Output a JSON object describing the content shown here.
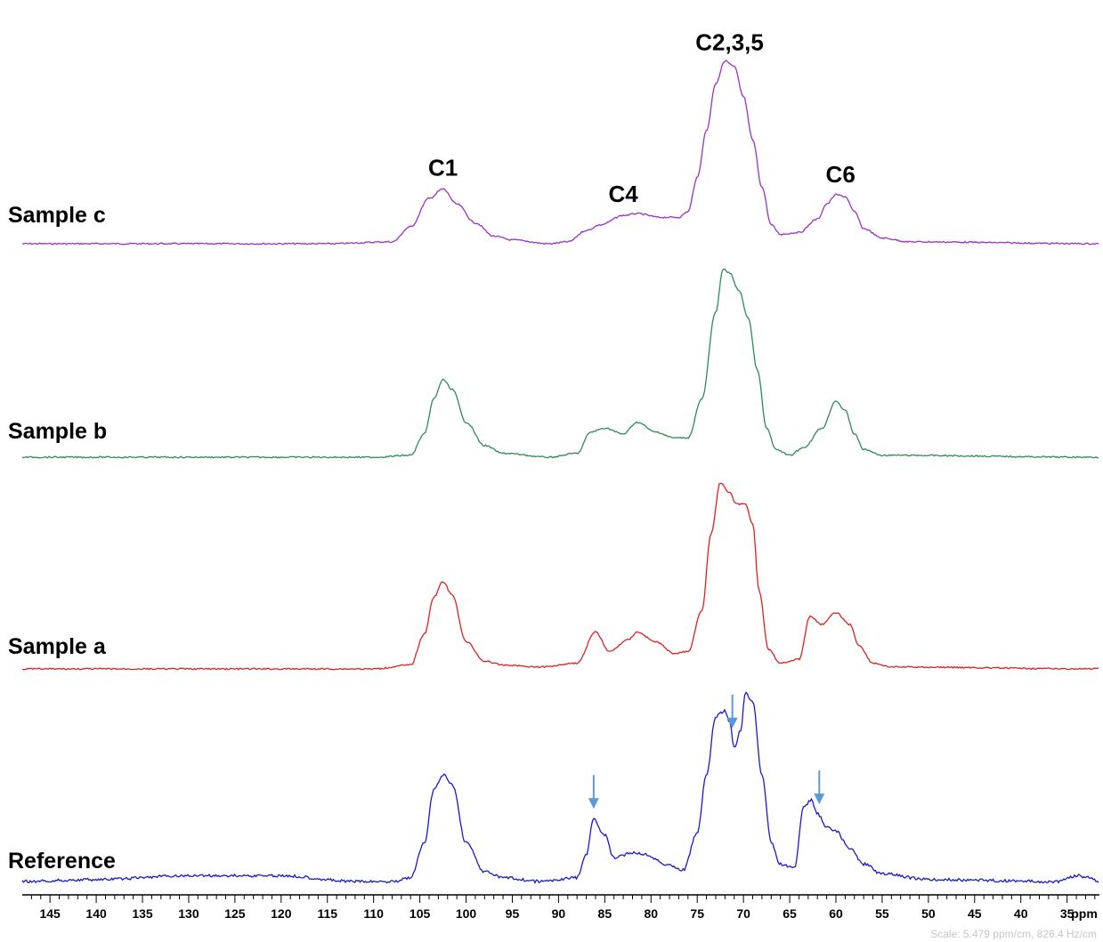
{
  "chart_data": {
    "type": "line",
    "title": "",
    "xlabel": "ppm",
    "ylabel": "",
    "x_reversed": true,
    "xlim": [
      148,
      31.5
    ],
    "x_ticks": [
      145,
      140,
      135,
      130,
      125,
      120,
      115,
      110,
      105,
      100,
      95,
      90,
      85,
      80,
      75,
      70,
      65,
      60,
      55,
      50,
      45,
      40,
      35
    ],
    "x_tick_labels": [
      "145",
      "140",
      "135",
      "130",
      "125",
      "120",
      "115",
      "110",
      "105",
      "100",
      "95",
      "90",
      "85",
      "80",
      "75",
      "70",
      "65",
      "60",
      "55",
      "50",
      "45",
      "40",
      "35"
    ],
    "scale_note": "Scale: 5.479 ppm/cm, 826.4 Hz/cm",
    "series": [
      {
        "name": "Sample c",
        "color": "#9b30c8",
        "points": [
          [
            148,
            0.0
          ],
          [
            115,
            0.0
          ],
          [
            108,
            0.01
          ],
          [
            106,
            0.09
          ],
          [
            104,
            0.24
          ],
          [
            102.5,
            0.29
          ],
          [
            101,
            0.21
          ],
          [
            99,
            0.11
          ],
          [
            97,
            0.04
          ],
          [
            95,
            0.02
          ],
          [
            91,
            0.0
          ],
          [
            89,
            0.01
          ],
          [
            87,
            0.07
          ],
          [
            85.5,
            0.1
          ],
          [
            83,
            0.15
          ],
          [
            81.5,
            0.16
          ],
          [
            79,
            0.14
          ],
          [
            77,
            0.14
          ],
          [
            76,
            0.17
          ],
          [
            75,
            0.35
          ],
          [
            74,
            0.6
          ],
          [
            73,
            0.85
          ],
          [
            72,
            0.97
          ],
          [
            71,
            0.94
          ],
          [
            70,
            0.78
          ],
          [
            69,
            0.55
          ],
          [
            68,
            0.3
          ],
          [
            67,
            0.1
          ],
          [
            66,
            0.05
          ],
          [
            64,
            0.06
          ],
          [
            62,
            0.13
          ],
          [
            61,
            0.21
          ],
          [
            60,
            0.26
          ],
          [
            59,
            0.25
          ],
          [
            58,
            0.17
          ],
          [
            57,
            0.08
          ],
          [
            55,
            0.03
          ],
          [
            52,
            0.01
          ],
          [
            31.5,
            0.0
          ]
        ]
      },
      {
        "name": "Sample b",
        "color": "#2e8b57",
        "points": [
          [
            148,
            0.0
          ],
          [
            110,
            0.0
          ],
          [
            106,
            0.01
          ],
          [
            104.5,
            0.12
          ],
          [
            103.5,
            0.3
          ],
          [
            102.5,
            0.4
          ],
          [
            101.5,
            0.35
          ],
          [
            100,
            0.18
          ],
          [
            98,
            0.06
          ],
          [
            96,
            0.02
          ],
          [
            91,
            0.0
          ],
          [
            88,
            0.02
          ],
          [
            86.5,
            0.13
          ],
          [
            85,
            0.15
          ],
          [
            83,
            0.12
          ],
          [
            81.5,
            0.18
          ],
          [
            79.5,
            0.13
          ],
          [
            77.5,
            0.1
          ],
          [
            76,
            0.1
          ],
          [
            74.5,
            0.3
          ],
          [
            73,
            0.75
          ],
          [
            72.2,
            0.97
          ],
          [
            71.5,
            0.95
          ],
          [
            70.5,
            0.86
          ],
          [
            69.5,
            0.72
          ],
          [
            68.5,
            0.45
          ],
          [
            67.5,
            0.15
          ],
          [
            66.5,
            0.04
          ],
          [
            65,
            0.01
          ],
          [
            63.5,
            0.05
          ],
          [
            61.5,
            0.15
          ],
          [
            60,
            0.29
          ],
          [
            59,
            0.24
          ],
          [
            58,
            0.12
          ],
          [
            57,
            0.04
          ],
          [
            55,
            0.01
          ],
          [
            31.5,
            0.0
          ]
        ]
      },
      {
        "name": "Sample a",
        "color": "#e02020",
        "points": [
          [
            148,
            0.0
          ],
          [
            110,
            0.0
          ],
          [
            106,
            0.02
          ],
          [
            104.5,
            0.18
          ],
          [
            103.5,
            0.37
          ],
          [
            102.5,
            0.45
          ],
          [
            101.5,
            0.38
          ],
          [
            100,
            0.14
          ],
          [
            98,
            0.04
          ],
          [
            96,
            0.02
          ],
          [
            92,
            0.01
          ],
          [
            88,
            0.03
          ],
          [
            86,
            0.19
          ],
          [
            84.5,
            0.09
          ],
          [
            82.5,
            0.15
          ],
          [
            81.5,
            0.19
          ],
          [
            79.5,
            0.14
          ],
          [
            77.5,
            0.08
          ],
          [
            76,
            0.09
          ],
          [
            74.5,
            0.3
          ],
          [
            73.5,
            0.7
          ],
          [
            72.5,
            0.96
          ],
          [
            71.5,
            0.91
          ],
          [
            70.8,
            0.85
          ],
          [
            69.8,
            0.85
          ],
          [
            69,
            0.75
          ],
          [
            68.3,
            0.4
          ],
          [
            67.3,
            0.1
          ],
          [
            66,
            0.03
          ],
          [
            64,
            0.05
          ],
          [
            62.8,
            0.27
          ],
          [
            61.5,
            0.23
          ],
          [
            60,
            0.29
          ],
          [
            58.5,
            0.23
          ],
          [
            57.5,
            0.12
          ],
          [
            56,
            0.03
          ],
          [
            54,
            0.01
          ],
          [
            31.5,
            0.0
          ]
        ]
      },
      {
        "name": "Reference",
        "color": "#1a1acc",
        "points": [
          [
            148,
            0.0
          ],
          [
            140,
            0.01
          ],
          [
            130,
            0.03
          ],
          [
            120,
            0.03
          ],
          [
            112,
            0.0
          ],
          [
            108,
            0.0
          ],
          [
            106,
            0.02
          ],
          [
            104.5,
            0.2
          ],
          [
            103.5,
            0.47
          ],
          [
            102.5,
            0.55
          ],
          [
            101.5,
            0.5
          ],
          [
            100,
            0.2
          ],
          [
            98,
            0.05
          ],
          [
            96,
            0.02
          ],
          [
            92,
            0.0
          ],
          [
            88,
            0.02
          ],
          [
            87,
            0.14
          ],
          [
            86.2,
            0.32
          ],
          [
            85,
            0.24
          ],
          [
            84,
            0.12
          ],
          [
            82,
            0.15
          ],
          [
            80.5,
            0.14
          ],
          [
            78.5,
            0.09
          ],
          [
            76.5,
            0.06
          ],
          [
            75,
            0.25
          ],
          [
            74,
            0.55
          ],
          [
            73,
            0.85
          ],
          [
            72,
            0.88
          ],
          [
            71.5,
            0.82
          ],
          [
            71,
            0.69
          ],
          [
            70.3,
            0.78
          ],
          [
            69.8,
            0.97
          ],
          [
            69,
            0.93
          ],
          [
            68,
            0.55
          ],
          [
            67,
            0.2
          ],
          [
            66,
            0.09
          ],
          [
            64.5,
            0.07
          ],
          [
            63.5,
            0.38
          ],
          [
            62.7,
            0.42
          ],
          [
            62,
            0.35
          ],
          [
            61,
            0.28
          ],
          [
            60,
            0.26
          ],
          [
            58.5,
            0.17
          ],
          [
            57,
            0.09
          ],
          [
            55,
            0.04
          ],
          [
            50,
            0.01
          ],
          [
            36,
            0.0
          ],
          [
            34,
            0.03
          ],
          [
            32.5,
            0.02
          ],
          [
            31.5,
            0.0
          ]
        ]
      }
    ],
    "peak_labels": [
      {
        "text": "C1",
        "ppm": 102.5
      },
      {
        "text": "C4",
        "ppm": 83
      },
      {
        "text": "C2,3,5",
        "ppm": 71.5
      },
      {
        "text": "C6",
        "ppm": 59.5
      }
    ],
    "arrows": [
      {
        "ppm": 86.2,
        "color": "#5b9bd5"
      },
      {
        "ppm": 71.2,
        "color": "#5b9bd5"
      },
      {
        "ppm": 61.8,
        "color": "#5b9bd5"
      }
    ]
  }
}
